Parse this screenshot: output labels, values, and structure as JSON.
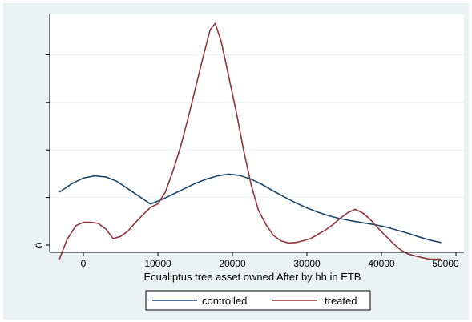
{
  "chart_data": {
    "type": "line",
    "title": "",
    "xlabel": "Ecualiptus tree asset owned After by hh in ETB",
    "ylabel": "",
    "xlim": [
      -3500,
      50000
    ],
    "ylim": [
      0,
      1.0
    ],
    "xticks": [
      0,
      10000,
      20000,
      30000,
      40000,
      50000
    ],
    "xtick_labels": [
      "0",
      "10000",
      "20000",
      "30000",
      "40000",
      "50000"
    ],
    "yticks": [
      0,
      0.22,
      0.44,
      0.66,
      0.88
    ],
    "ytick_labels": [
      "0",
      "",
      "",
      "",
      ""
    ],
    "grid": true,
    "legend_position": "bottom",
    "series": [
      {
        "name": "controlled",
        "color": "#1a476f",
        "x": [
          -3200,
          -1500,
          0,
          1500,
          3000,
          4500,
          6000,
          7500,
          9000,
          10500,
          12000,
          13500,
          15000,
          16500,
          18000,
          19500,
          21000,
          22500,
          24000,
          25500,
          27000,
          28500,
          30000,
          31500,
          33000,
          34500,
          36000,
          37500,
          39000,
          40500,
          42000,
          43500,
          45000,
          46500,
          48000
        ],
        "y": [
          0.245,
          0.285,
          0.31,
          0.32,
          0.315,
          0.295,
          0.26,
          0.225,
          0.19,
          0.21,
          0.235,
          0.26,
          0.285,
          0.305,
          0.32,
          0.328,
          0.322,
          0.305,
          0.28,
          0.25,
          0.222,
          0.195,
          0.172,
          0.152,
          0.135,
          0.122,
          0.112,
          0.103,
          0.095,
          0.085,
          0.07,
          0.055,
          0.038,
          0.023,
          0.012
        ]
      },
      {
        "name": "treated",
        "color": "#90353b",
        "x": [
          -3200,
          -2200,
          -1000,
          0,
          1000,
          2000,
          3000,
          4000,
          5000,
          6000,
          7000,
          8000,
          9000,
          10000,
          11000,
          12000,
          13000,
          14000,
          15000,
          16000,
          17000,
          17700,
          18500,
          19500,
          20500,
          21500,
          22500,
          23500,
          24500,
          25500,
          26500,
          27500,
          28500,
          29500,
          30500,
          31500,
          32500,
          33500,
          34500,
          35500,
          36500,
          37500,
          38500,
          39500,
          40500,
          41500,
          42500,
          43500,
          44500,
          45500,
          46500,
          47500,
          48000
        ],
        "y": [
          -0.065,
          0.025,
          0.09,
          0.105,
          0.105,
          0.1,
          0.075,
          0.03,
          0.04,
          0.065,
          0.105,
          0.14,
          0.175,
          0.19,
          0.245,
          0.34,
          0.45,
          0.58,
          0.72,
          0.86,
          0.995,
          1.025,
          0.94,
          0.78,
          0.62,
          0.44,
          0.28,
          0.16,
          0.095,
          0.045,
          0.02,
          0.01,
          0.012,
          0.02,
          0.03,
          0.05,
          0.07,
          0.095,
          0.125,
          0.15,
          0.165,
          0.148,
          0.118,
          0.08,
          0.045,
          0.01,
          -0.02,
          -0.04,
          -0.05,
          -0.058,
          -0.065,
          -0.065,
          -0.065
        ]
      }
    ]
  }
}
